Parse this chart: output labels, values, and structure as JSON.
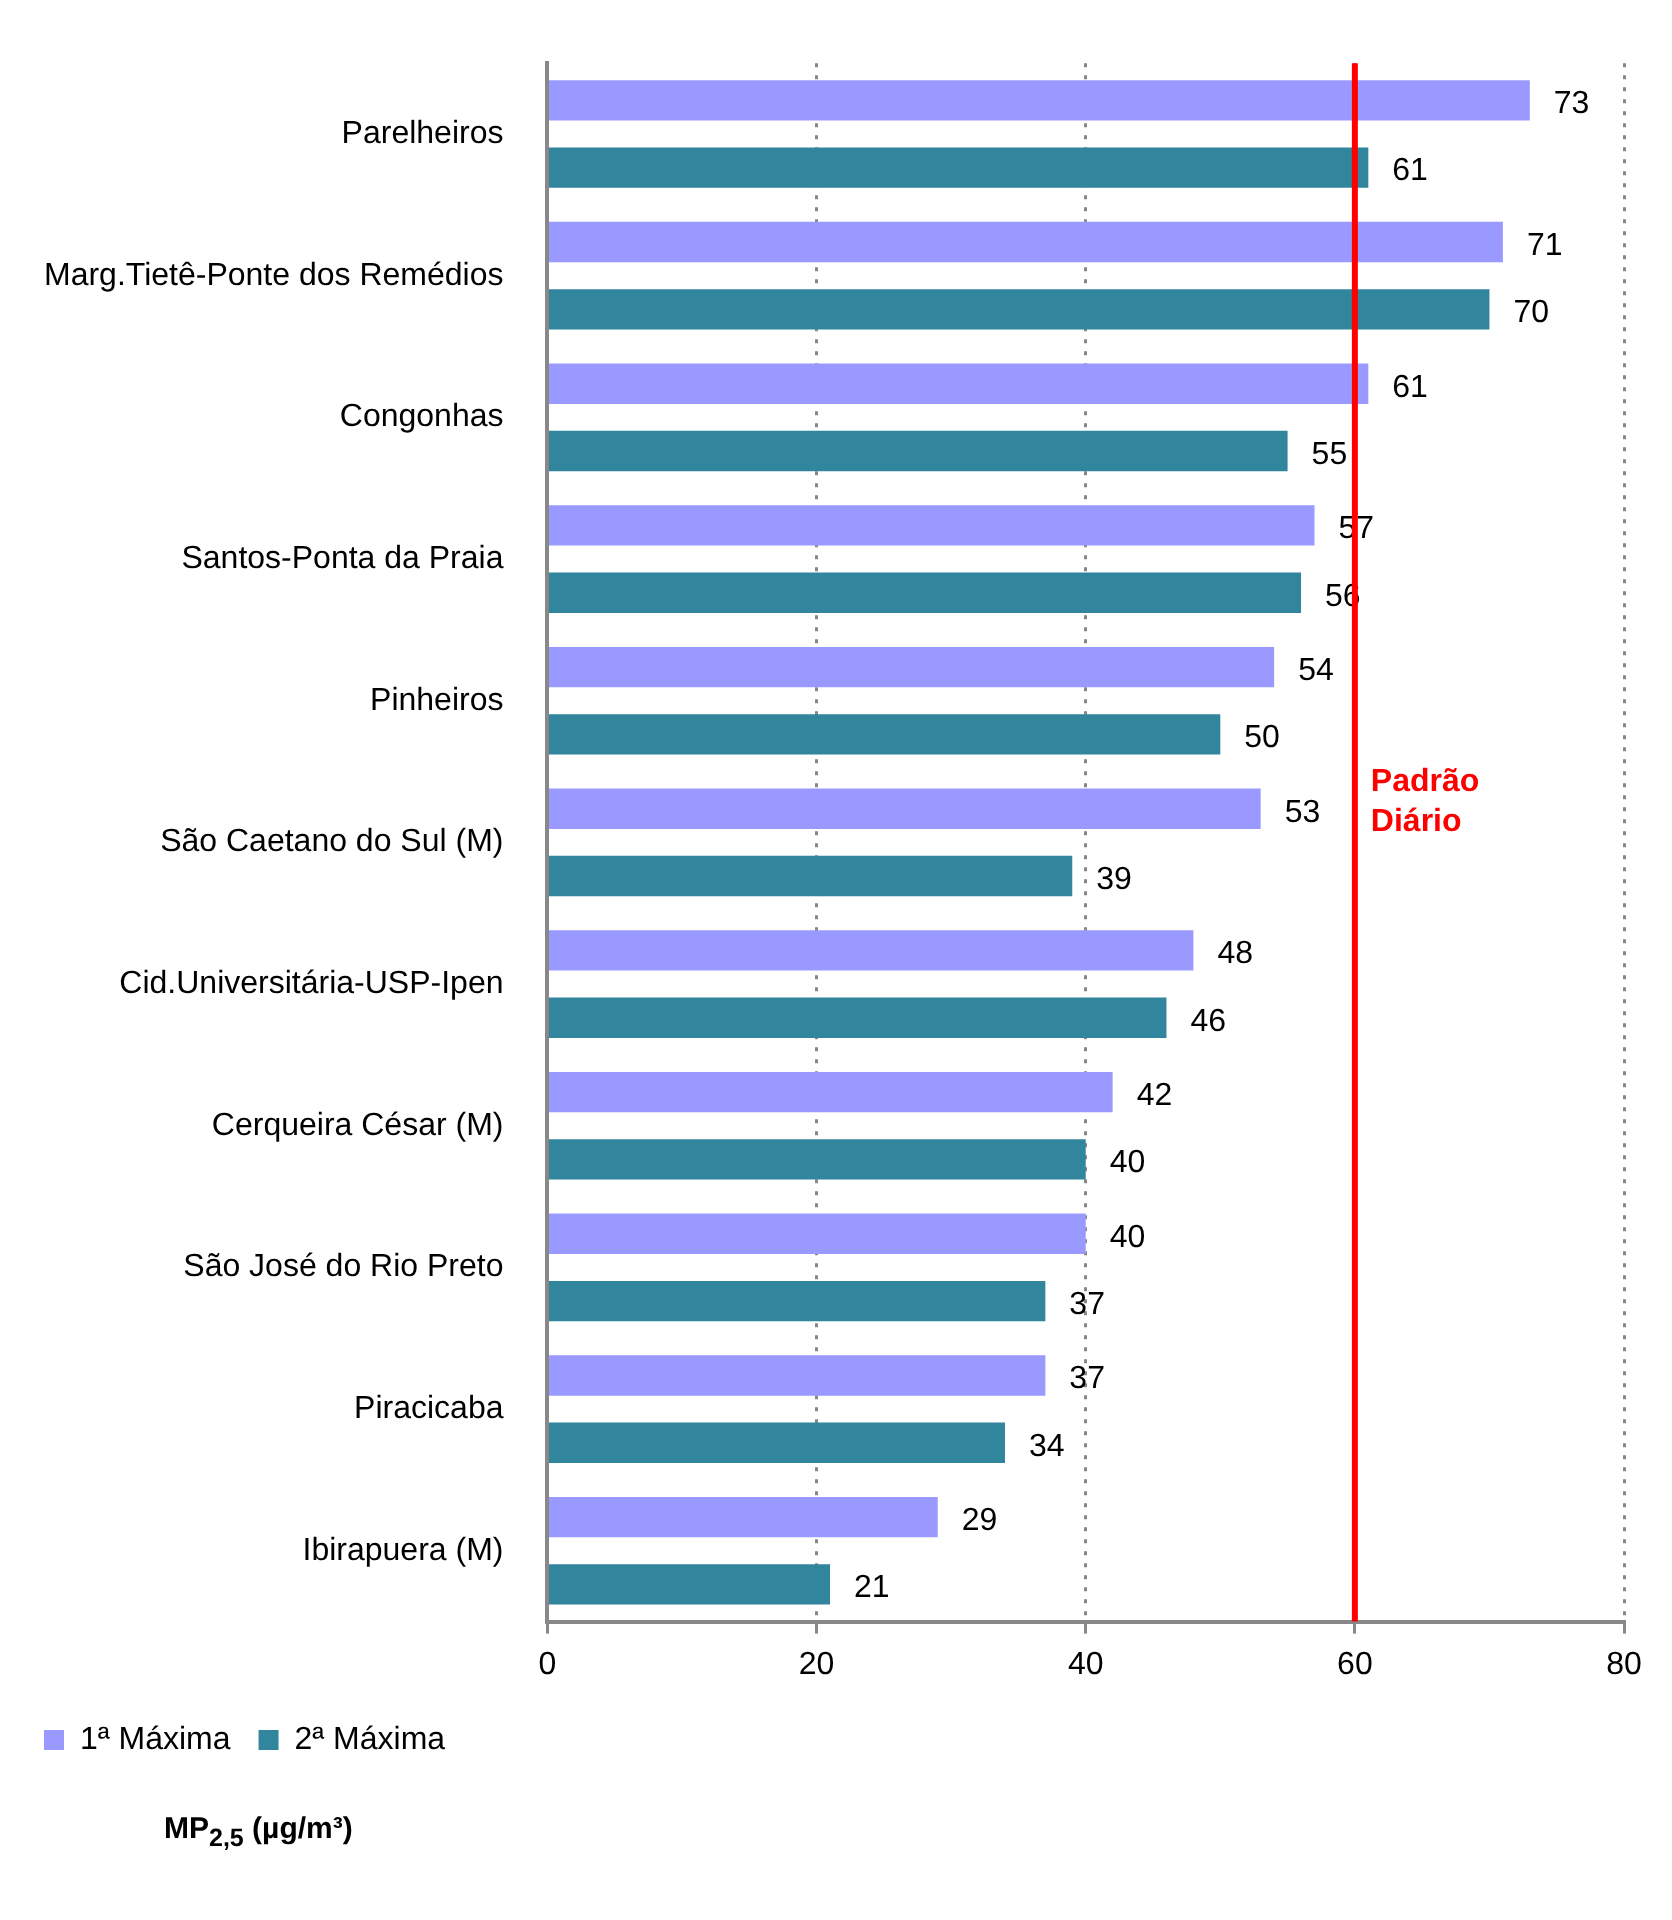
{
  "chart_data": {
    "type": "bar",
    "orientation": "horizontal",
    "categories": [
      "Parelheiros",
      "Marg.Tietê-Ponte dos Remédios",
      "Congonhas",
      "Santos-Ponta da Praia",
      "Pinheiros",
      "São Caetano do Sul (M)",
      "Cid.Universitária-USP-Ipen",
      "Cerqueira César (M)",
      "São José do Rio Preto",
      "Piracicaba",
      "Ibirapuera (M)"
    ],
    "series": [
      {
        "name": "1ª Máxima",
        "color": "#9999ff",
        "values": [
          73,
          71,
          61,
          57,
          54,
          53,
          48,
          42,
          40,
          37,
          29
        ]
      },
      {
        "name": "2ª Máxima",
        "color": "#31859c",
        "values": [
          61,
          70,
          55,
          56,
          50,
          39,
          46,
          40,
          37,
          34,
          21
        ]
      }
    ],
    "xlim": [
      0,
      80
    ],
    "xticks": [
      0,
      20,
      40,
      60,
      80
    ],
    "grid": "x",
    "legend": "bottom left",
    "data_labels": true,
    "ref_lines": [
      {
        "axis": "x",
        "value": 60,
        "label": "Padrão Diário",
        "color": "#ff0000"
      }
    ],
    "annotations": [
      "MP$_{2,5}$ (µg/m³)"
    ]
  }
}
